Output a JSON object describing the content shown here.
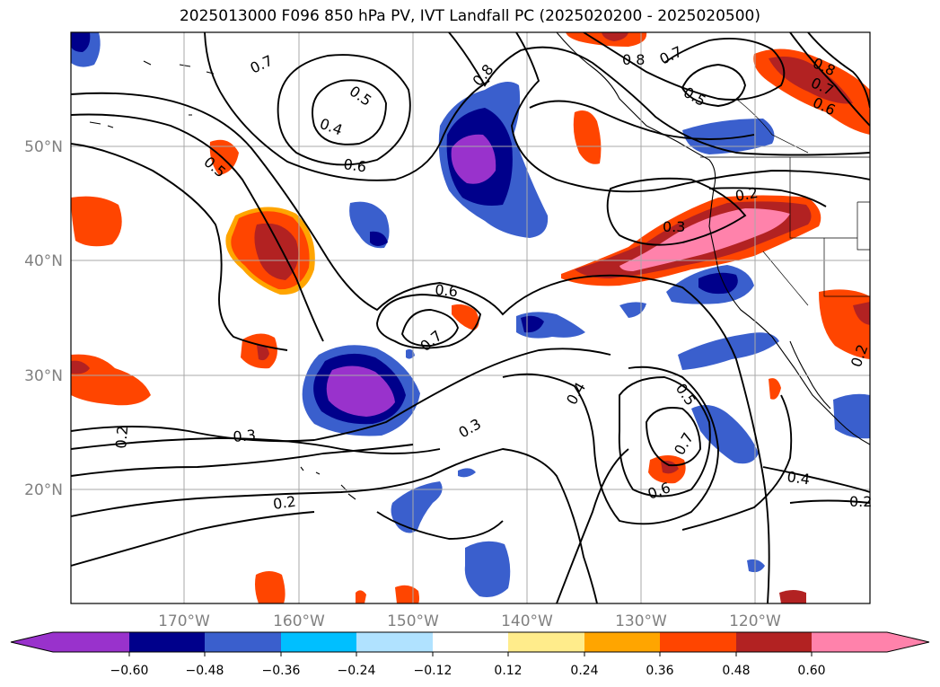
{
  "title": "2025013000 F096 850 hPa PV, IVT Landfall PC (2025020200 - 2025020500)",
  "map": {
    "lat_labels": [
      "50°N",
      "40°N",
      "30°N",
      "20°N"
    ],
    "lon_labels": [
      "170°W",
      "160°W",
      "150°W",
      "140°W",
      "130°W",
      "120°W"
    ],
    "contour_labels": [
      "0.7",
      "0.5",
      "0.4",
      "0.6",
      "0.5",
      "0.8",
      "0.8",
      "0.7",
      "0.5",
      "0.8",
      "0.7",
      "0.6",
      "0.2",
      "0.3",
      "0.6",
      "0.7",
      "0.4",
      "0.5",
      "0.7",
      "0.6",
      "0.3",
      "0.3",
      "0.2",
      "0.2",
      "0.4",
      "0.2",
      "0.2"
    ],
    "colors": {
      "purple": "#9932CC",
      "navy": "#00008B",
      "royalblue": "#3A5FCD",
      "deepskyblue": "#00BFFF",
      "lightblue": "#B0E2FF",
      "khaki": "#FFEC8B",
      "orange": "#FFA500",
      "orangered": "#FF4500",
      "firebrick": "#B22222",
      "pink": "#FF82AB",
      "grid": "#a8a8a8",
      "label_gray": "#808080"
    }
  },
  "colorbar": {
    "ticks": [
      "−0.60",
      "−0.48",
      "−0.36",
      "−0.24",
      "−0.12",
      "0.12",
      "0.24",
      "0.36",
      "0.48",
      "0.60"
    ],
    "colors": [
      "#9932CC",
      "#00008B",
      "#3A5FCD",
      "#00BFFF",
      "#B0E2FF",
      "#FFFFFF",
      "#FFEC8B",
      "#FFA500",
      "#FF4500",
      "#B22222",
      "#FF82AB"
    ]
  }
}
